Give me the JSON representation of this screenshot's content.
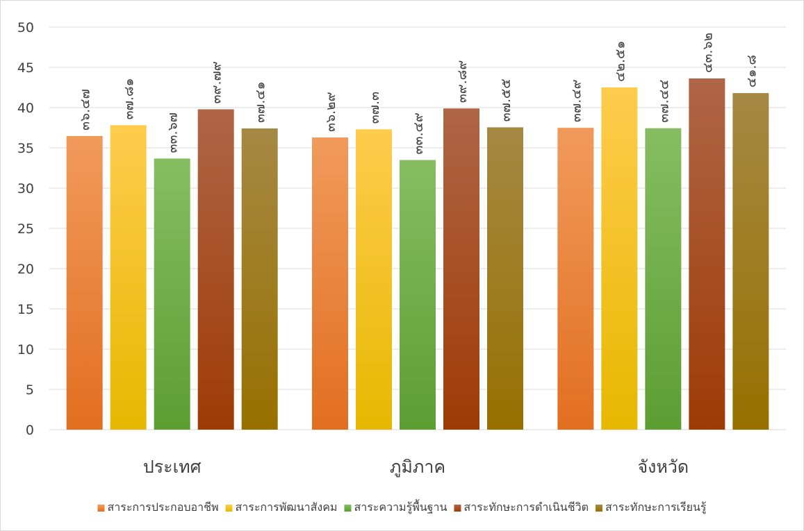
{
  "chart_data": {
    "type": "bar",
    "title": "",
    "xlabel": "",
    "ylabel": "",
    "ylim": [
      0,
      50
    ],
    "ytick_step": 5,
    "grid": true,
    "legend_position": "bottom",
    "categories": [
      "ประเทศ",
      "ภูมิภาค",
      "จังหวัด"
    ],
    "series": [
      {
        "name": "สาระการประกอบอาชีพ",
        "values": [
          36.47,
          36.29,
          37.49
        ],
        "labels": [
          "๓๖.๔๗",
          "๓๖.๒๙",
          "๓๗.๔๙"
        ],
        "color_top": "#f19a5c",
        "color_bottom": "#e26f20"
      },
      {
        "name": "สาระการพัฒนาสังคม",
        "values": [
          37.81,
          37.3,
          42.51
        ],
        "labels": [
          "๓๗.๘๑",
          "๓๗.๓",
          "๔๒.๕๑"
        ],
        "color_top": "#ffcc4d",
        "color_bottom": "#e6b800"
      },
      {
        "name": "สาระความรู้พื้นฐาน",
        "values": [
          33.67,
          33.49,
          37.44
        ],
        "labels": [
          "๓๓.๖๗",
          "๓๓.๔๙",
          "๓๗.๔๔"
        ],
        "color_top": "#86bd61",
        "color_bottom": "#5c9e32"
      },
      {
        "name": "สาระทักษะการดำเนินชีวิต",
        "values": [
          39.79,
          39.89,
          43.62
        ],
        "labels": [
          "๓๙.๗๙",
          "๓๙.๘๙",
          "๔๓.๖๒"
        ],
        "color_top": "#b06547",
        "color_bottom": "#9e3b04"
      },
      {
        "name": "สาระทักษะการเรียนรู้",
        "values": [
          37.41,
          37.55,
          41.8
        ],
        "labels": [
          "๓๗.๔๑",
          "๓๗.๕๕",
          "๔๑.๘"
        ],
        "color_top": "#a58943",
        "color_bottom": "#987000"
      }
    ]
  }
}
